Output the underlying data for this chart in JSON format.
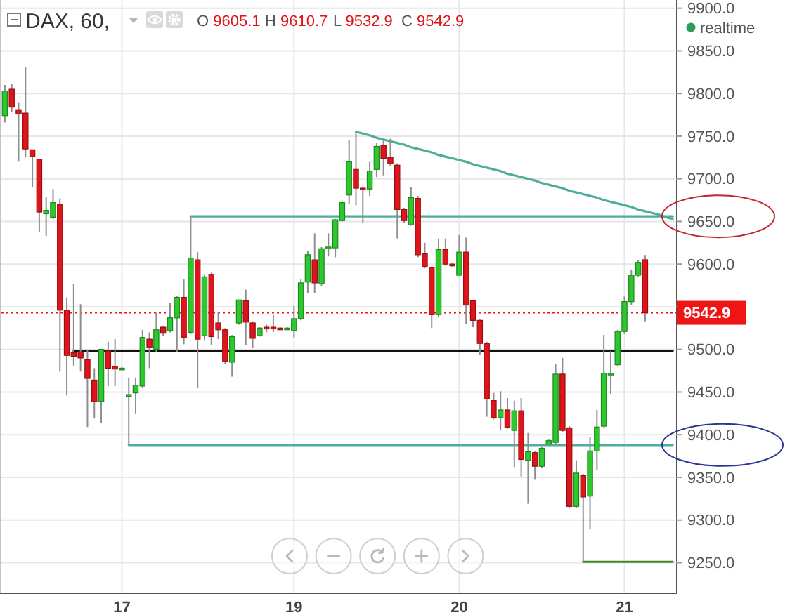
{
  "chart_data": {
    "type": "candlestick",
    "title": "DAX, 60,",
    "annotations": [
      "O 9605.1",
      "H 9610.7",
      "L 9532.9",
      "C 9542.9",
      "realtime"
    ],
    "categories": [
      null,
      null,
      null,
      null,
      null,
      null,
      null,
      null,
      null,
      null,
      null,
      null,
      null,
      null,
      null,
      null,
      null,
      "17",
      null,
      null,
      null,
      null,
      null,
      null,
      null,
      null,
      null,
      null,
      null,
      null,
      null,
      null,
      null,
      null,
      null,
      null,
      null,
      null,
      null,
      null,
      null,
      null,
      "19",
      null,
      null,
      null,
      null,
      null,
      null,
      null,
      null,
      null,
      null,
      null,
      null,
      null,
      null,
      null,
      null,
      null,
      null,
      null,
      null,
      null,
      null,
      null,
      "20",
      null,
      null,
      null,
      null,
      null,
      null,
      null,
      null,
      null,
      null,
      null,
      null,
      null,
      null,
      null,
      null,
      null,
      null,
      null,
      null,
      null,
      null,
      null,
      "21",
      null,
      null,
      null,
      null,
      null,
      null,
      null
    ],
    "ylim": [
      9215,
      9903
    ],
    "yticks": [
      {
        "value": 9250,
        "label": "9250.0"
      },
      {
        "value": 9300,
        "label": "9300.0"
      },
      {
        "value": 9350,
        "label": "9350.0"
      },
      {
        "value": 9400,
        "label": "9400.0"
      },
      {
        "value": 9450,
        "label": "9450.0"
      },
      {
        "value": 9500,
        "label": "9500.0"
      },
      {
        "value": 9550,
        "label": null
      },
      {
        "value": 9600,
        "label": "9600.0"
      },
      {
        "value": 9650,
        "label": "9650.0"
      },
      {
        "value": 9700,
        "label": "9700.0"
      },
      {
        "value": 9750,
        "label": "9750.0"
      },
      {
        "value": 9800,
        "label": "9800.0"
      },
      {
        "value": 9850,
        "label": "9850.0"
      },
      {
        "value": 9900,
        "label": "9900.0"
      }
    ],
    "grid": true,
    "ref_lines": [
      {
        "axis": "y",
        "value": 9542.9,
        "label": "9542.9",
        "color": "#f01414",
        "line_style": "dotted"
      }
    ],
    "series": [
      {
        "ohlc": [
          [
            9774,
            9810,
            9766,
            9803
          ],
          [
            9805,
            9811,
            9778,
            9784
          ],
          [
            9781,
            9789,
            9720,
            9776
          ],
          [
            9777,
            9831,
            9725,
            9735
          ],
          [
            9734,
            9734,
            9690,
            9726
          ],
          [
            9723,
            9723,
            9637,
            9661
          ],
          [
            9659,
            9679,
            9633,
            9663
          ],
          [
            9655,
            9688,
            9653,
            9672
          ],
          [
            9670,
            9677,
            9474,
            9546
          ],
          [
            9546,
            9561,
            9446,
            9493
          ],
          [
            9496,
            9577,
            9481,
            9492
          ],
          [
            9497,
            9553,
            9474,
            9490
          ],
          [
            9488,
            9500,
            9409,
            9466
          ],
          [
            9464,
            9478,
            9419,
            9439
          ],
          [
            9439,
            9500,
            9414,
            9500
          ],
          [
            9498,
            9509,
            9457,
            9478
          ],
          [
            9480,
            9512,
            9457,
            9477
          ],
          [
            9477,
            9479,
            9476,
            9478
          ],
          [
            9446,
            9467,
            9388,
            9447
          ],
          [
            9449,
            9467,
            9425,
            9458
          ],
          [
            9457,
            9523,
            9455,
            9514
          ],
          [
            9512,
            9520,
            9478,
            9502
          ],
          [
            9500,
            9543,
            9497,
            9523
          ],
          [
            9526,
            9527,
            9516,
            9519
          ],
          [
            9522,
            9554,
            9520,
            9537
          ],
          [
            9537,
            9563,
            9497,
            9561
          ],
          [
            9561,
            9582,
            9506,
            9514
          ],
          [
            9520,
            9656,
            9518,
            9607
          ],
          [
            9605,
            9614,
            9455,
            9512
          ],
          [
            9516,
            9588,
            9510,
            9585
          ],
          [
            9588,
            9590,
            9505,
            9515
          ],
          [
            9531,
            9543,
            9512,
            9523
          ],
          [
            9523,
            9525,
            9483,
            9486
          ],
          [
            9485,
            9517,
            9468,
            9515
          ],
          [
            9531,
            9558,
            9529,
            9558
          ],
          [
            9557,
            9570,
            9505,
            9532
          ],
          [
            9531,
            9533,
            9502,
            9513
          ],
          [
            9516,
            9526,
            9515,
            9525
          ],
          [
            9526,
            9529,
            9520,
            9525
          ],
          [
            9526,
            9540,
            9520,
            9525
          ],
          [
            9525,
            9526,
            9523,
            9524
          ],
          [
            9524,
            9526,
            9523,
            9525
          ],
          [
            9522,
            9551,
            9514,
            9536
          ],
          [
            9536,
            9582,
            9534,
            9578
          ],
          [
            9579,
            9615,
            9566,
            9611
          ],
          [
            9605,
            9636,
            9566,
            9578
          ],
          [
            9577,
            9620,
            9574,
            9618
          ],
          [
            9619,
            9636,
            9609,
            9620
          ],
          [
            9619,
            9653,
            9608,
            9652
          ],
          [
            9651,
            9673,
            9650,
            9672
          ],
          [
            9681,
            9745,
            9671,
            9720
          ],
          [
            9711,
            9755,
            9669,
            9689
          ],
          [
            9689,
            9690,
            9648,
            9688
          ],
          [
            9688,
            9720,
            9680,
            9709
          ],
          [
            9711,
            9742,
            9702,
            9738
          ],
          [
            9739,
            9746,
            9704,
            9724
          ],
          [
            9725,
            9747,
            9715,
            9718
          ],
          [
            9716,
            9718,
            9630,
            9664
          ],
          [
            9664,
            9666,
            9648,
            9651
          ],
          [
            9646,
            9690,
            9645,
            9678
          ],
          [
            9677,
            9680,
            9608,
            9611
          ],
          [
            9612,
            9625,
            9595,
            9597
          ],
          [
            9596,
            9597,
            9525,
            9541
          ],
          [
            9541,
            9630,
            9538,
            9617
          ],
          [
            9617,
            9630,
            9598,
            9600
          ],
          [
            9600,
            9602,
            9597,
            9598
          ],
          [
            9587,
            9634,
            9586,
            9614
          ],
          [
            9614,
            9631,
            9530,
            9552
          ],
          [
            9557,
            9558,
            9526,
            9534
          ],
          [
            9534,
            9535,
            9494,
            9507
          ],
          [
            9507,
            9509,
            9421,
            9442
          ],
          [
            9440,
            9449,
            9418,
            9420
          ],
          [
            9420,
            9451,
            9405,
            9429
          ],
          [
            9429,
            9443,
            9407,
            9409
          ],
          [
            9405,
            9440,
            9362,
            9428
          ],
          [
            9428,
            9443,
            9351,
            9371
          ],
          [
            9370,
            9402,
            9319,
            9380
          ],
          [
            9379,
            9381,
            9348,
            9363
          ],
          [
            9363,
            9386,
            9361,
            9384
          ],
          [
            9389,
            9395,
            9388,
            9393
          ],
          [
            9391,
            9483,
            9389,
            9471
          ],
          [
            9471,
            9490,
            9403,
            9405
          ],
          [
            9408,
            9410,
            9314,
            9316
          ],
          [
            9316,
            9370,
            9314,
            9355
          ],
          [
            9352,
            9354,
            9251,
            9327
          ],
          [
            9328,
            9397,
            9289,
            9381
          ],
          [
            9381,
            9429,
            9359,
            9409
          ],
          [
            9410,
            9517,
            9408,
            9472
          ],
          [
            9470,
            9498,
            9448,
            9472
          ],
          [
            9482,
            9523,
            9480,
            9521
          ],
          [
            9521,
            9562,
            9518,
            9556
          ],
          [
            9556,
            9593,
            9552,
            9587
          ],
          [
            9587,
            9605,
            9585,
            9602
          ],
          [
            9605.1,
            9610.7,
            9532.9,
            9542.9
          ],
          null,
          null,
          null,
          null
        ],
        "colors": [
          "#2dc82d",
          "#e0151b",
          "#e0151b",
          "#e0151b",
          "#e0151b",
          "#e0151b",
          "#2dc82d",
          "#2dc82d",
          "#e0151b",
          "#e0151b",
          "#e0151b",
          "#e0151b",
          "#e0151b",
          "#e0151b",
          "#2dc82d",
          "#e0151b",
          "#e0151b",
          "#2dc82d",
          "#2dc82d",
          "#2dc82d",
          "#2dc82d",
          "#e0151b",
          "#2dc82d",
          "#e0151b",
          "#2dc82d",
          "#2dc82d",
          "#e0151b",
          "#2dc82d",
          "#e0151b",
          "#2dc82d",
          "#e0151b",
          "#e0151b",
          "#e0151b",
          "#2dc82d",
          "#2dc82d",
          "#e0151b",
          "#e0151b",
          "#2dc82d",
          "#e0151b",
          "#e0151b",
          "#e0151b",
          "#2dc82d",
          "#2dc82d",
          "#2dc82d",
          "#2dc82d",
          "#e0151b",
          "#2dc82d",
          "#2dc82d",
          "#2dc82d",
          "#2dc82d",
          "#2dc82d",
          "#e0151b",
          "#e0151b",
          "#2dc82d",
          "#2dc82d",
          "#e0151b",
          "#e0151b",
          "#e0151b",
          "#e0151b",
          "#2dc82d",
          "#e0151b",
          "#e0151b",
          "#e0151b",
          "#2dc82d",
          "#e0151b",
          "#e0151b",
          "#2dc82d",
          "#e0151b",
          "#e0151b",
          "#e0151b",
          "#e0151b",
          "#e0151b",
          "#2dc82d",
          "#e0151b",
          "#2dc82d",
          "#e0151b",
          "#2dc82d",
          "#e0151b",
          "#2dc82d",
          "#2dc82d",
          "#2dc82d",
          "#e0151b",
          "#e0151b",
          "#2dc82d",
          "#e0151b",
          "#2dc82d",
          "#2dc82d",
          "#2dc82d",
          "#2dc82d",
          "#2dc82d",
          "#2dc82d",
          "#2dc82d",
          "#2dc82d",
          "#e0151b",
          null,
          null,
          null,
          null
        ]
      },
      {
        "type": "line",
        "color": "#4fae9b",
        "values": [
          null,
          null,
          null,
          null,
          null,
          null,
          null,
          null,
          null,
          null,
          null,
          null,
          null,
          null,
          null,
          null,
          null,
          null,
          null,
          null,
          null,
          null,
          null,
          null,
          null,
          null,
          null,
          9656,
          9656,
          9656,
          9656,
          9656,
          9656,
          9656,
          9656,
          9656,
          9656,
          9656,
          9656,
          9656,
          9656,
          9656,
          9656,
          9656,
          9656,
          9656,
          9656,
          9656,
          9656,
          9656,
          9656,
          9656,
          9656,
          9656,
          9656,
          9656,
          9656,
          9656,
          9656,
          9656,
          9656,
          9656,
          9656,
          9656,
          9656,
          9656,
          9656,
          9656,
          9656,
          9656,
          9656,
          9656,
          9656,
          9656,
          9656,
          9656,
          9656,
          9656,
          9656,
          9656,
          9656,
          9656,
          9656,
          9656,
          9656,
          9656,
          9656,
          9656,
          9656,
          9656,
          9656,
          9656,
          9656,
          9656,
          9656,
          9656,
          9656,
          9656
        ]
      },
      {
        "type": "line",
        "color": "#4fae9b",
        "values": [
          null,
          null,
          null,
          null,
          null,
          null,
          null,
          null,
          null,
          null,
          null,
          null,
          null,
          null,
          null,
          null,
          null,
          null,
          null,
          null,
          null,
          null,
          null,
          null,
          null,
          null,
          null,
          null,
          null,
          null,
          null,
          null,
          null,
          null,
          null,
          null,
          null,
          null,
          null,
          null,
          null,
          null,
          null,
          null,
          null,
          null,
          null,
          null,
          null,
          null,
          null,
          9755,
          9753,
          9751,
          9748,
          9746,
          9744,
          9742,
          9740,
          9737,
          9735,
          9733,
          9731,
          9728,
          9726,
          9724,
          9722,
          9720,
          9717,
          9715,
          9713,
          9711,
          9709,
          9706,
          9704,
          9702,
          9700,
          9698,
          9695,
          9693,
          9691,
          9689,
          9686,
          9684,
          9682,
          9680,
          9678,
          9675,
          9673,
          9671,
          9669,
          9667,
          9664,
          9662,
          9660,
          9658,
          9655,
          9653
        ]
      },
      {
        "type": "line",
        "color": "#4fae9b",
        "values": [
          null,
          null,
          null,
          null,
          null,
          null,
          null,
          null,
          null,
          null,
          null,
          null,
          null,
          null,
          null,
          null,
          null,
          null,
          9388,
          9388,
          9388,
          9388,
          9388,
          9388,
          9388,
          9388,
          9388,
          9388,
          9388,
          9388,
          9388,
          9388,
          9388,
          9388,
          9388,
          9388,
          9388,
          9388,
          9388,
          9388,
          9388,
          9388,
          9388,
          9388,
          9388,
          9388,
          9388,
          9388,
          9388,
          9388,
          9388,
          9388,
          9388,
          9388,
          9388,
          9388,
          9388,
          9388,
          9388,
          9388,
          9388,
          9388,
          9388,
          9388,
          9388,
          9388,
          9388,
          9388,
          9388,
          9388,
          9388,
          9388,
          9388,
          9388,
          9388,
          9388,
          9388,
          9388,
          9388,
          9388,
          9388,
          9388,
          9388,
          9388,
          9388,
          9388,
          9388,
          9388,
          9388,
          9388,
          9388,
          9388,
          9388,
          9388,
          9388,
          9388,
          9388,
          9388
        ]
      },
      {
        "type": "line",
        "color": "#111111",
        "values": [
          null,
          null,
          null,
          null,
          null,
          null,
          null,
          null,
          null,
          null,
          9498,
          9498,
          9498,
          9498,
          9498,
          9498,
          9498,
          9498,
          9498,
          9498,
          9498,
          9498,
          9498,
          9498,
          9498,
          9498,
          9498,
          9498,
          9498,
          9498,
          9498,
          9498,
          9498,
          9498,
          9498,
          9498,
          9498,
          9498,
          9498,
          9498,
          9498,
          9498,
          9498,
          9498,
          9498,
          9498,
          9498,
          9498,
          9498,
          9498,
          9498,
          9498,
          9498,
          9498,
          9498,
          9498,
          9498,
          9498,
          9498,
          9498,
          9498,
          9498,
          9498,
          9498,
          9498,
          9498,
          9498,
          9498,
          9498,
          9498,
          9498,
          9498,
          9498,
          9498,
          9498,
          9498,
          9498,
          9498,
          9498,
          9498,
          9498,
          9498,
          9498,
          9498,
          9498,
          9498,
          9498,
          9498,
          9498,
          9498,
          9498,
          9498,
          9498,
          9498,
          9498,
          9498,
          9498,
          9498
        ]
      },
      {
        "type": "line",
        "color": "#3c8c28",
        "values": [
          null,
          null,
          null,
          null,
          null,
          null,
          null,
          null,
          null,
          null,
          null,
          null,
          null,
          null,
          null,
          null,
          null,
          null,
          null,
          null,
          null,
          null,
          null,
          null,
          null,
          null,
          null,
          null,
          null,
          null,
          null,
          null,
          null,
          null,
          null,
          null,
          null,
          null,
          null,
          null,
          null,
          null,
          null,
          null,
          null,
          null,
          null,
          null,
          null,
          null,
          null,
          null,
          null,
          null,
          null,
          null,
          null,
          null,
          null,
          null,
          null,
          null,
          null,
          null,
          null,
          null,
          null,
          null,
          null,
          null,
          null,
          null,
          null,
          null,
          null,
          null,
          null,
          null,
          null,
          null,
          null,
          null,
          null,
          null,
          9251,
          9251,
          9251,
          9251,
          9251,
          9251,
          9251,
          9251,
          9251,
          9251,
          9251,
          9251,
          9251,
          9251
        ]
      }
    ]
  }
}
